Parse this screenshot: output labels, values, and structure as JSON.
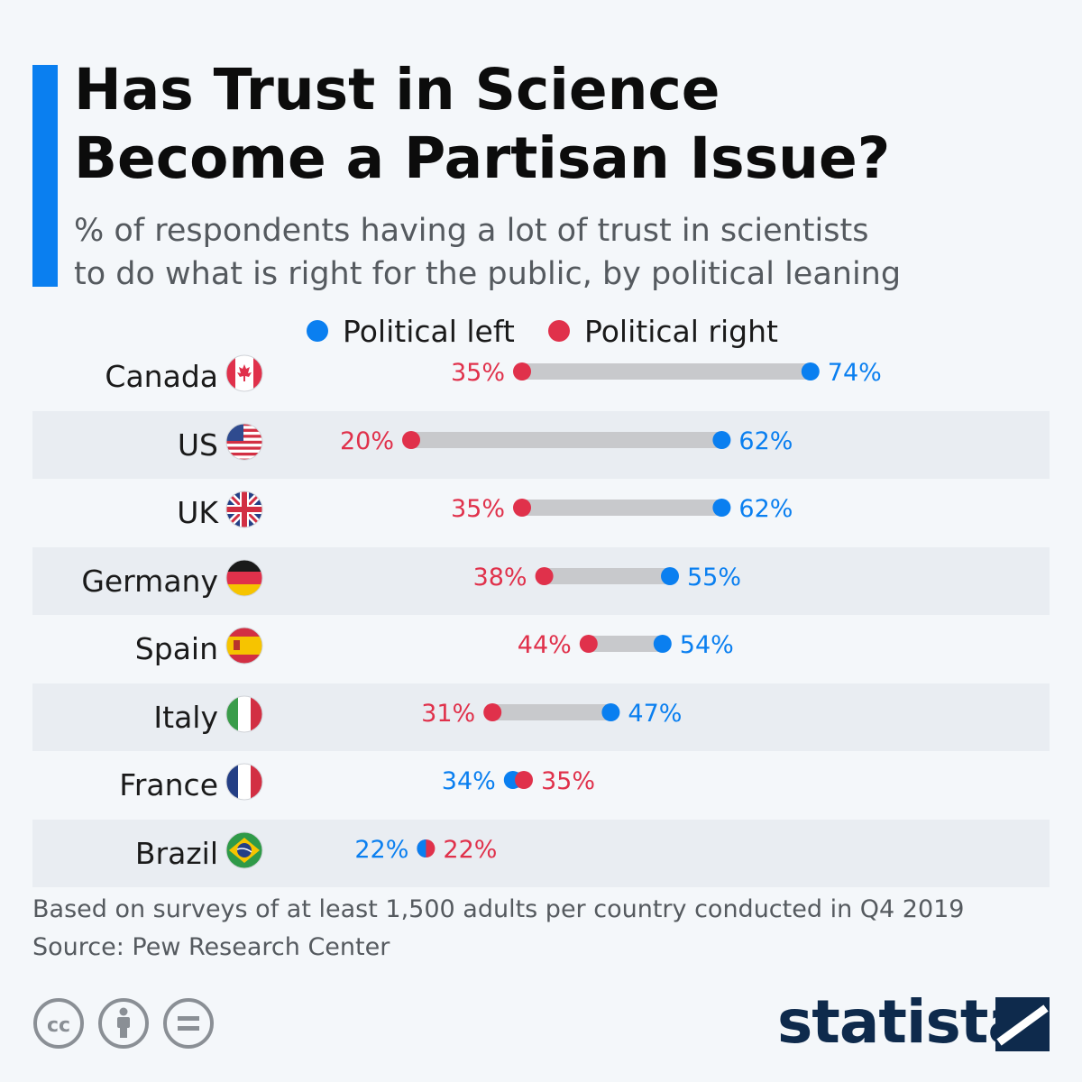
{
  "header": {
    "title_line1": "Has Trust in Science",
    "title_line2": "Become a Partisan Issue?",
    "subtitle_line1": "% of respondents having a lot of trust in scientists",
    "subtitle_line2": "to do what is right for the public, by political leaning"
  },
  "legend": {
    "left_label": "Political left",
    "right_label": "Political right"
  },
  "colors": {
    "left": "#0a7ff0",
    "right": "#e0314b",
    "connector": "#c8c9cc",
    "accent": "#0a7ff0",
    "row_shade": "#e9edf2",
    "logo": "#0e2a4c"
  },
  "chart_data": {
    "type": "dumbbell",
    "title": "Has Trust in Science Become a Partisan Issue?",
    "unit": "%",
    "categories": [
      "Canada",
      "US",
      "UK",
      "Germany",
      "Spain",
      "Italy",
      "France",
      "Brazil"
    ],
    "flags": [
      "canada-flag",
      "us-flag",
      "uk-flag",
      "germany-flag",
      "spain-flag",
      "italy-flag",
      "france-flag",
      "brazil-flag"
    ],
    "series": [
      {
        "name": "Political left",
        "values": [
          74,
          62,
          62,
          55,
          54,
          47,
          34,
          22
        ]
      },
      {
        "name": "Political right",
        "values": [
          35,
          20,
          35,
          38,
          44,
          31,
          35,
          22
        ]
      }
    ],
    "grid": false,
    "legend_position": "top"
  },
  "footer": {
    "note": "Based on surveys of at least 1,500 adults per country conducted in Q4 2019",
    "source": "Source: Pew Research Center",
    "license_icons": [
      "cc-icon",
      "attribution-icon",
      "no-derivatives-icon"
    ],
    "logo_text": "statista"
  }
}
